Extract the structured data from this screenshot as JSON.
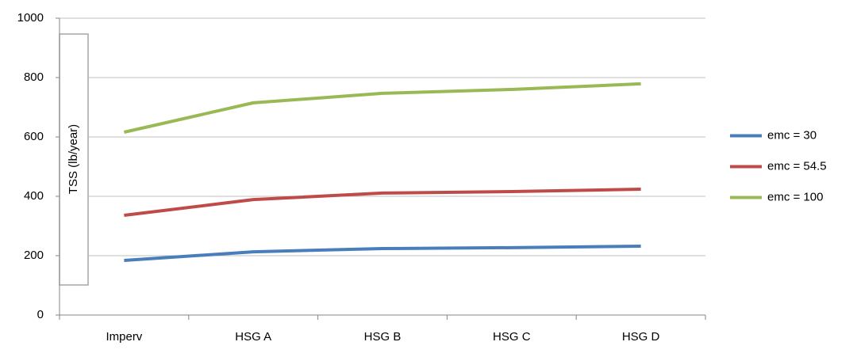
{
  "chart_data": {
    "type": "line",
    "y_label": "TSS  (lb/year)",
    "categories": [
      "Imperv",
      "HSG A",
      "HSG B",
      "HSG C",
      "HSG D"
    ],
    "series": [
      {
        "name": "emc = 30",
        "color": "#4a7ebb",
        "values": [
          184,
          213,
          224,
          227,
          232
        ]
      },
      {
        "name": "emc = 54.5",
        "color": "#be4b48",
        "values": [
          336,
          389,
          411,
          416,
          424
        ]
      },
      {
        "name": "emc = 100",
        "color": "#98b954",
        "values": [
          616,
          715,
          747,
          760,
          779
        ]
      }
    ],
    "ylim": [
      0,
      1000
    ],
    "yticks": [
      0,
      200,
      400,
      600,
      800,
      1000
    ],
    "grid": true,
    "legend": "right"
  }
}
